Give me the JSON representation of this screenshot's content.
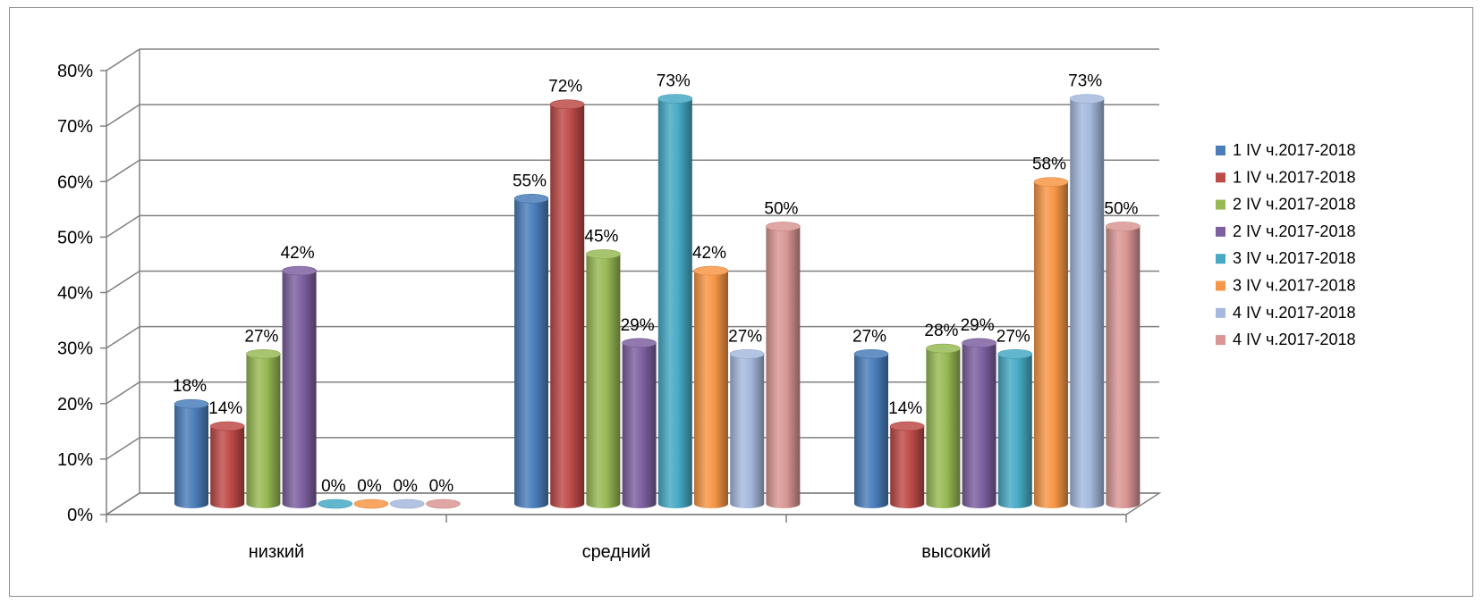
{
  "chart_data": {
    "type": "bar",
    "style": "3d-cylinder",
    "title": "",
    "xlabel": "",
    "ylabel": "",
    "ylim": [
      0,
      80
    ],
    "yticks": [
      "0%",
      "10%",
      "20%",
      "30%",
      "40%",
      "50%",
      "60%",
      "70%",
      "80%"
    ],
    "value_suffix": "%",
    "grid": true,
    "legend_position": "right",
    "categories": [
      "низкий",
      "средний",
      "высокий"
    ],
    "series": [
      {
        "name": "1 IV ч.2017-2018",
        "color": "#4a7ebb",
        "values": [
          18,
          55,
          27
        ]
      },
      {
        "name": "1 IV ч.2017-2018",
        "color": "#be4b48",
        "values": [
          14,
          72,
          14
        ]
      },
      {
        "name": "2 IV ч.2017-2018",
        "color": "#98b954",
        "values": [
          27,
          45,
          28
        ]
      },
      {
        "name": "2 IV ч.2017-2018",
        "color": "#7d60a0",
        "values": [
          42,
          29,
          29
        ]
      },
      {
        "name": "3 IV ч.2017-2018",
        "color": "#46aac5",
        "values": [
          0,
          73,
          27
        ]
      },
      {
        "name": "3 IV ч.2017-2018",
        "color": "#f79646",
        "values": [
          0,
          42,
          58
        ]
      },
      {
        "name": "4 IV ч.2017-2018",
        "color": "#a5b9de",
        "values": [
          0,
          27,
          73
        ]
      },
      {
        "name": "4 IV ч.2017-2018",
        "color": "#d99694",
        "values": [
          0,
          50,
          50
        ]
      }
    ]
  }
}
